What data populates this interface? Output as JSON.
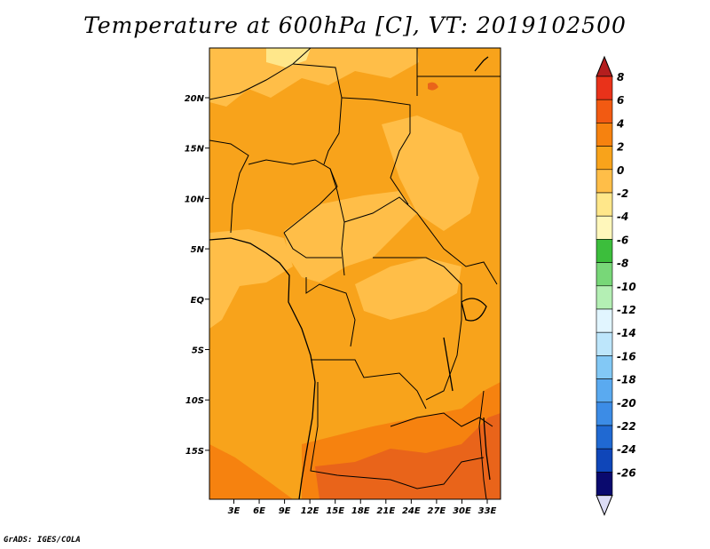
{
  "title": "Temperature at 600hPa [C], VT: 2019102500",
  "credit": "GrADS: IGES/COLA",
  "colors": {
    "base": "#f8a31b",
    "warm_patch": "#ffbe48",
    "pale_patch": "#ffe78a",
    "hot_patch": "#f6820f",
    "hottest_patch": "#e9641a",
    "border": "#000000"
  },
  "map": {
    "lat_labels": [
      "20N",
      "15N",
      "10N",
      "5N",
      "EQ",
      "5S",
      "10S",
      "15S"
    ],
    "lon_labels": [
      "3E",
      "6E",
      "9E",
      "12E",
      "15E",
      "18E",
      "21E",
      "24E",
      "27E",
      "30E",
      "33E"
    ]
  },
  "colorbar": {
    "labels": [
      "8",
      "6",
      "4",
      "2",
      "0",
      "-2",
      "-4",
      "-6",
      "-8",
      "-10",
      "-12",
      "-14",
      "-16",
      "-18",
      "-20",
      "-22",
      "-24",
      "-26"
    ],
    "colors": [
      "#e9321a",
      "#f25a12",
      "#f6820f",
      "#f8a31b",
      "#ffbe48",
      "#ffe78a",
      "#fff7bb",
      "#3cbe3c",
      "#78d778",
      "#b4efb4",
      "#e1f5ff",
      "#bde6fb",
      "#82c8f5",
      "#5aaaf0",
      "#3c8ce6",
      "#2069d2",
      "#0f46b9",
      "#0a0a6e"
    ],
    "end_colors": {
      "top": "#b41e1e",
      "bottom": "#dcdcf5"
    }
  }
}
